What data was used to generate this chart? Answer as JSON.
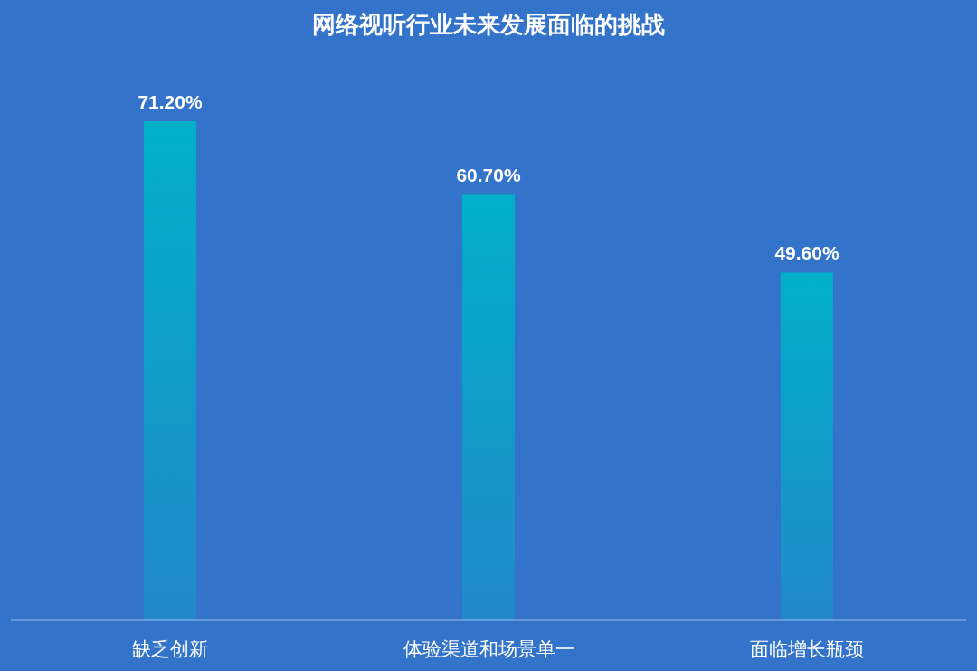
{
  "chart_data": {
    "type": "bar",
    "title": "网络视听行业未来发展面临的挑战",
    "categories": [
      "缺乏创新",
      "体验渠道和场景单一",
      "面临增长瓶颈"
    ],
    "values": [
      71.2,
      60.7,
      49.6
    ],
    "value_labels": [
      "71.20%",
      "60.70%",
      "49.60%"
    ],
    "color": "#00b0c8"
  }
}
